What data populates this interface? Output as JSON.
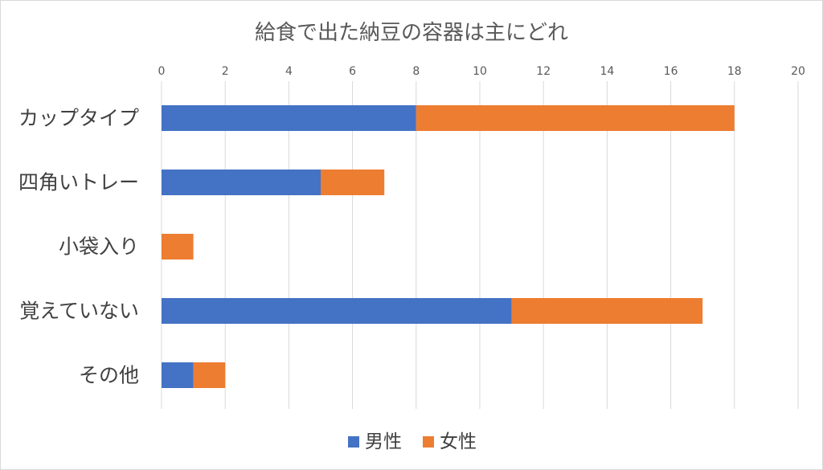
{
  "chart_data": {
    "type": "bar",
    "orientation": "horizontal",
    "stacked": true,
    "title": "給食で出た納豆の容器は主にどれ",
    "xlabel": "",
    "ylabel": "",
    "xlim": [
      0,
      20
    ],
    "x_ticks": [
      0,
      2,
      4,
      6,
      8,
      10,
      12,
      14,
      16,
      18,
      20
    ],
    "x_tick_labels": [
      "0",
      "2",
      "4",
      "6",
      "8",
      "10",
      "12",
      "14",
      "16",
      "18",
      "20"
    ],
    "x_axis_position": "top",
    "grid": true,
    "legend": "bottom",
    "categories": [
      "カップタイプ",
      "四角いトレー",
      "小袋入り",
      "覚えていない",
      "その他"
    ],
    "series": [
      {
        "name": "男性",
        "color": "#4472c4",
        "values": [
          8,
          5,
          0,
          11,
          1
        ]
      },
      {
        "name": "女性",
        "color": "#ed7d31",
        "values": [
          10,
          2,
          1,
          6,
          1
        ]
      }
    ]
  }
}
